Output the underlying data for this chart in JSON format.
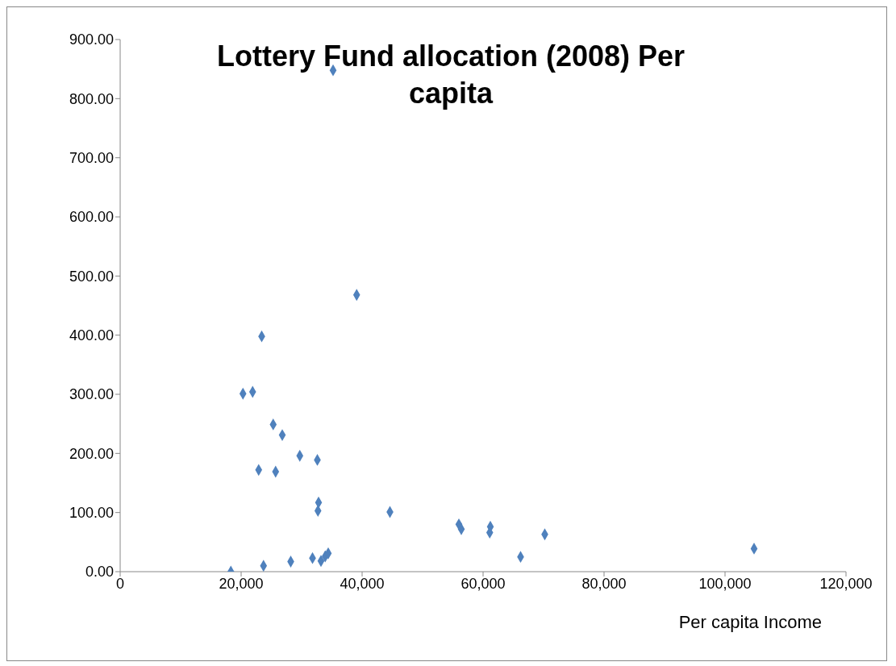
{
  "chart_data": {
    "type": "scatter",
    "title": "Lottery Fund allocation (2008) Per capita",
    "xlabel": "Per capita Income",
    "x": [
      35200,
      39100,
      23400,
      20300,
      21900,
      25300,
      26800,
      29700,
      22900,
      25700,
      32600,
      32800,
      32700,
      44600,
      56000,
      56400,
      61200,
      61100,
      66200,
      70200,
      104800,
      18300,
      23700,
      28200,
      31800,
      33200,
      33900,
      34400
    ],
    "series": [
      {
        "color": "#4f81bd",
        "values": [
          848,
          468,
          398,
          301,
          304,
          249,
          231,
          196,
          172,
          169,
          189,
          117,
          103,
          101,
          80,
          72,
          76,
          66,
          25,
          63,
          39,
          0,
          10,
          17,
          23,
          18,
          26,
          31
        ]
      }
    ],
    "marker": "diamond",
    "legend": false,
    "grid": false,
    "xlim": [
      0,
      120000
    ],
    "xticks": [
      {
        "value": 0,
        "label": "0"
      },
      {
        "value": 20000,
        "label": "20,000"
      },
      {
        "value": 40000,
        "label": "40,000"
      },
      {
        "value": 60000,
        "label": "60,000"
      },
      {
        "value": 80000,
        "label": "80,000"
      },
      {
        "value": 100000,
        "label": "100,000"
      },
      {
        "value": 120000,
        "label": "120,000"
      }
    ],
    "ylim": [
      0,
      900
    ],
    "yticks": [
      {
        "value": 0,
        "label": "0.00"
      },
      {
        "value": 100,
        "label": "100.00"
      },
      {
        "value": 200,
        "label": "200.00"
      },
      {
        "value": 300,
        "label": "300.00"
      },
      {
        "value": 400,
        "label": "400.00"
      },
      {
        "value": 500,
        "label": "500.00"
      },
      {
        "value": 600,
        "label": "600.00"
      },
      {
        "value": 700,
        "label": "700.00"
      },
      {
        "value": 800,
        "label": "800.00"
      },
      {
        "value": 900,
        "label": "900.00"
      }
    ]
  }
}
